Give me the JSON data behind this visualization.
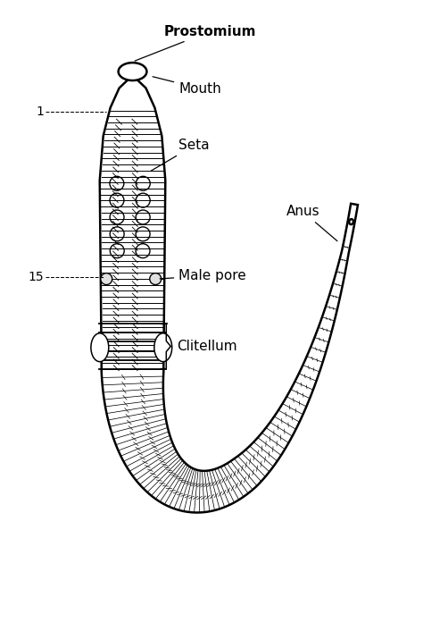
{
  "bg_color": "#ffffff",
  "line_color": "#000000",
  "labels": {
    "prostomium": "Prostomium",
    "mouth": "Mouth",
    "seta": "Seta",
    "male_pore": "Male pore",
    "clitellum": "Clitellum",
    "anus": "Anus",
    "seg1": "1",
    "seg15": "15"
  },
  "label_fontsize": 11,
  "seg_label_fontsize": 10
}
